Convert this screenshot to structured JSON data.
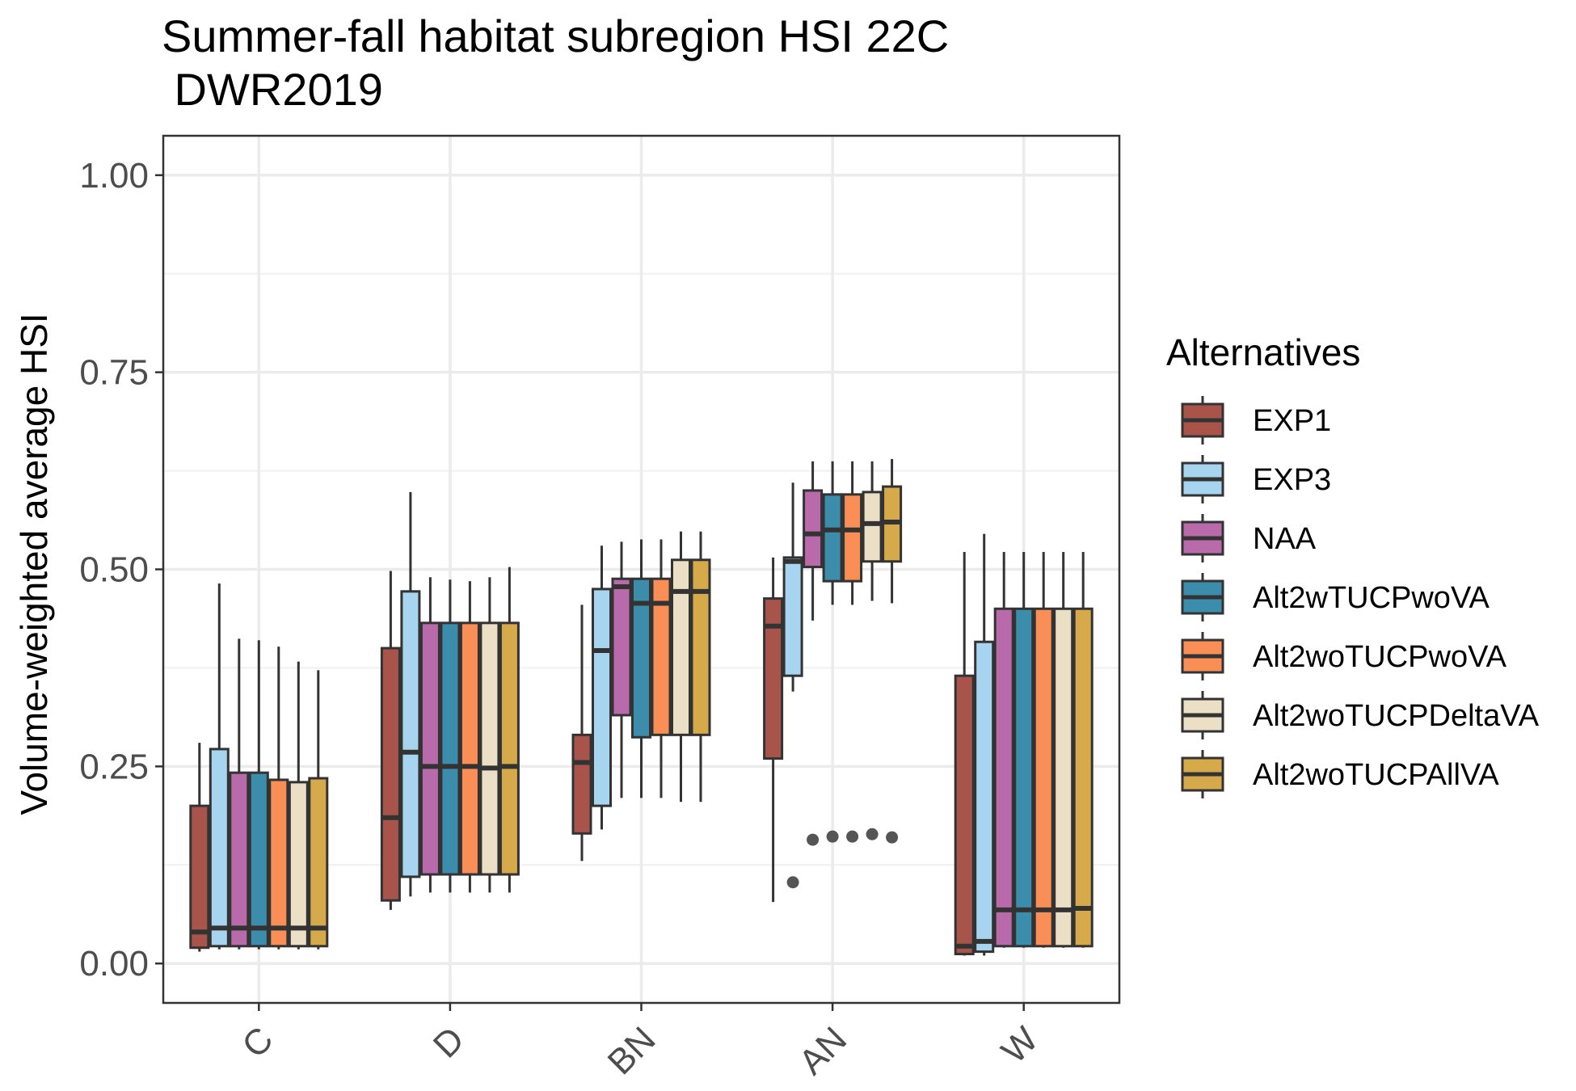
{
  "chart_data": {
    "type": "box",
    "title_line1": "Summer-fall habitat subregion HSI 22C",
    "title_line2": " DWR2019",
    "xlabel": "",
    "ylabel": "Volume-weighted average HSI",
    "ylim": [
      -0.05,
      1.05
    ],
    "yticks": [
      "0.00",
      "0.25",
      "0.50",
      "0.75",
      "1.00"
    ],
    "ytick_values": [
      0,
      0.25,
      0.5,
      0.75,
      1.0
    ],
    "categories": [
      "C",
      "D",
      "BN",
      "AN",
      "W"
    ],
    "grid": true,
    "legend_title": "Alternatives",
    "legend_position": "right",
    "series": [
      {
        "name": "EXP1",
        "color": "#a9544b",
        "boxes": [
          {
            "min": 0.015,
            "q1": 0.02,
            "median": 0.04,
            "q3": 0.2,
            "max": 0.28,
            "outliers": []
          },
          {
            "min": 0.068,
            "q1": 0.08,
            "median": 0.185,
            "q3": 0.4,
            "max": 0.498,
            "outliers": []
          },
          {
            "min": 0.13,
            "q1": 0.165,
            "median": 0.255,
            "q3": 0.29,
            "max": 0.455,
            "outliers": []
          },
          {
            "min": 0.078,
            "q1": 0.26,
            "median": 0.428,
            "q3": 0.463,
            "max": 0.515,
            "outliers": []
          },
          {
            "min": 0.01,
            "q1": 0.012,
            "median": 0.022,
            "q3": 0.365,
            "max": 0.522,
            "outliers": []
          }
        ]
      },
      {
        "name": "EXP3",
        "color": "#a7d4ef",
        "boxes": [
          {
            "min": 0.018,
            "q1": 0.022,
            "median": 0.045,
            "q3": 0.272,
            "max": 0.482,
            "outliers": []
          },
          {
            "min": 0.085,
            "q1": 0.11,
            "median": 0.268,
            "q3": 0.472,
            "max": 0.598,
            "outliers": []
          },
          {
            "min": 0.17,
            "q1": 0.2,
            "median": 0.397,
            "q3": 0.475,
            "max": 0.53,
            "outliers": []
          },
          {
            "min": 0.345,
            "q1": 0.365,
            "median": 0.51,
            "q3": 0.515,
            "max": 0.61,
            "outliers": [
              0.103
            ]
          },
          {
            "min": 0.01,
            "q1": 0.015,
            "median": 0.028,
            "q3": 0.408,
            "max": 0.545,
            "outliers": []
          }
        ]
      },
      {
        "name": "NAA",
        "color": "#b86aaa",
        "boxes": [
          {
            "min": 0.018,
            "q1": 0.022,
            "median": 0.045,
            "q3": 0.242,
            "max": 0.412,
            "outliers": []
          },
          {
            "min": 0.09,
            "q1": 0.113,
            "median": 0.25,
            "q3": 0.432,
            "max": 0.49,
            "outliers": []
          },
          {
            "min": 0.21,
            "q1": 0.315,
            "median": 0.478,
            "q3": 0.488,
            "max": 0.535,
            "outliers": []
          },
          {
            "min": 0.435,
            "q1": 0.503,
            "median": 0.545,
            "q3": 0.6,
            "max": 0.637,
            "outliers": [
              0.157
            ]
          },
          {
            "min": 0.02,
            "q1": 0.022,
            "median": 0.068,
            "q3": 0.45,
            "max": 0.522,
            "outliers": []
          }
        ]
      },
      {
        "name": "Alt2wTUCPwoVA",
        "color": "#3b8dab",
        "boxes": [
          {
            "min": 0.018,
            "q1": 0.022,
            "median": 0.045,
            "q3": 0.242,
            "max": 0.41,
            "outliers": []
          },
          {
            "min": 0.09,
            "q1": 0.113,
            "median": 0.25,
            "q3": 0.432,
            "max": 0.487,
            "outliers": []
          },
          {
            "min": 0.21,
            "q1": 0.287,
            "median": 0.457,
            "q3": 0.488,
            "max": 0.538,
            "outliers": []
          },
          {
            "min": 0.455,
            "q1": 0.485,
            "median": 0.55,
            "q3": 0.595,
            "max": 0.637,
            "outliers": [
              0.161
            ]
          },
          {
            "min": 0.02,
            "q1": 0.022,
            "median": 0.068,
            "q3": 0.45,
            "max": 0.522,
            "outliers": []
          }
        ]
      },
      {
        "name": "Alt2woTUCPwoVA",
        "color": "#f98e57",
        "boxes": [
          {
            "min": 0.018,
            "q1": 0.022,
            "median": 0.045,
            "q3": 0.233,
            "max": 0.402,
            "outliers": []
          },
          {
            "min": 0.09,
            "q1": 0.113,
            "median": 0.25,
            "q3": 0.432,
            "max": 0.485,
            "outliers": []
          },
          {
            "min": 0.21,
            "q1": 0.29,
            "median": 0.457,
            "q3": 0.488,
            "max": 0.538,
            "outliers": []
          },
          {
            "min": 0.455,
            "q1": 0.485,
            "median": 0.55,
            "q3": 0.595,
            "max": 0.637,
            "outliers": [
              0.161
            ]
          },
          {
            "min": 0.02,
            "q1": 0.022,
            "median": 0.068,
            "q3": 0.45,
            "max": 0.522,
            "outliers": []
          }
        ]
      },
      {
        "name": "Alt2woTUCPDeltaVA",
        "color": "#ebdfc5",
        "boxes": [
          {
            "min": 0.018,
            "q1": 0.022,
            "median": 0.045,
            "q3": 0.23,
            "max": 0.383,
            "outliers": []
          },
          {
            "min": 0.09,
            "q1": 0.113,
            "median": 0.248,
            "q3": 0.432,
            "max": 0.49,
            "outliers": []
          },
          {
            "min": 0.205,
            "q1": 0.29,
            "median": 0.472,
            "q3": 0.512,
            "max": 0.548,
            "outliers": []
          },
          {
            "min": 0.46,
            "q1": 0.51,
            "median": 0.558,
            "q3": 0.598,
            "max": 0.637,
            "outliers": [
              0.164
            ]
          },
          {
            "min": 0.02,
            "q1": 0.022,
            "median": 0.068,
            "q3": 0.45,
            "max": 0.522,
            "outliers": []
          }
        ]
      },
      {
        "name": "Alt2woTUCPAllVA",
        "color": "#d6aa4b",
        "boxes": [
          {
            "min": 0.018,
            "q1": 0.022,
            "median": 0.045,
            "q3": 0.235,
            "max": 0.372,
            "outliers": []
          },
          {
            "min": 0.09,
            "q1": 0.113,
            "median": 0.25,
            "q3": 0.432,
            "max": 0.503,
            "outliers": []
          },
          {
            "min": 0.205,
            "q1": 0.29,
            "median": 0.472,
            "q3": 0.512,
            "max": 0.548,
            "outliers": []
          },
          {
            "min": 0.457,
            "q1": 0.51,
            "median": 0.56,
            "q3": 0.605,
            "max": 0.64,
            "outliers": [
              0.16
            ]
          },
          {
            "min": 0.02,
            "q1": 0.022,
            "median": 0.07,
            "q3": 0.45,
            "max": 0.522,
            "outliers": []
          }
        ]
      }
    ]
  }
}
